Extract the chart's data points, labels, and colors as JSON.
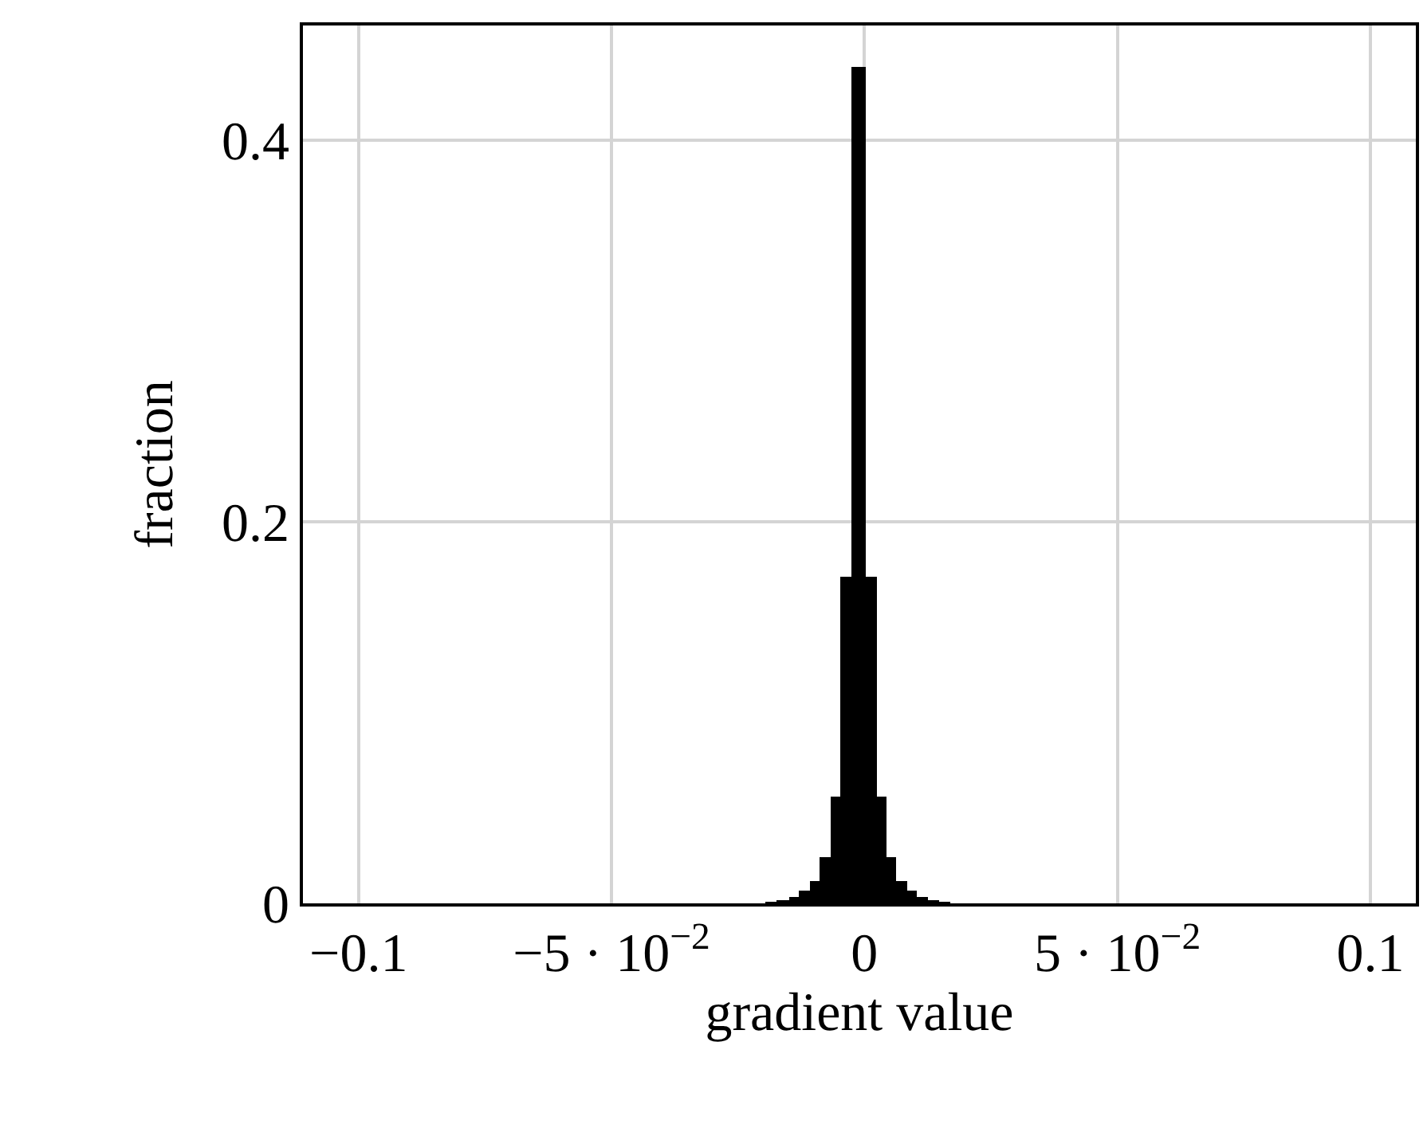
{
  "chart_data": {
    "type": "histogram",
    "xlabel": "gradient value",
    "ylabel": "fraction",
    "bins": [
      -0.0195,
      -0.0173,
      -0.0149,
      -0.0129,
      -0.0107,
      -0.0088,
      -0.0068,
      -0.0048,
      -0.0027,
      0.0003,
      0.0024,
      0.0044,
      0.0063,
      0.0085,
      0.0104,
      0.0126,
      0.0148,
      0.017
    ],
    "values": [
      0.0007,
      0.0017,
      0.0036,
      0.0064,
      0.0114,
      0.024,
      0.0556,
      0.171,
      0.438,
      0.171,
      0.0556,
      0.024,
      0.0114,
      0.0064,
      0.0036,
      0.0017,
      0.0007
    ],
    "color": "#000000",
    "xlim": [
      -0.111,
      0.109
    ],
    "xticks": [
      {
        "value": -0.1,
        "label": "−0.1"
      },
      {
        "value": -0.05,
        "label": "−5 · 10$^{−2}$"
      },
      {
        "value": 0,
        "label": "0"
      },
      {
        "value": 0.05,
        "label": "5 · 10$^{−2}$"
      },
      {
        "value": 0.1,
        "label": "0.1"
      }
    ],
    "ylim": [
      0,
      0.46
    ],
    "yticks": [
      0,
      0.2,
      0.4
    ],
    "grid": true
  }
}
